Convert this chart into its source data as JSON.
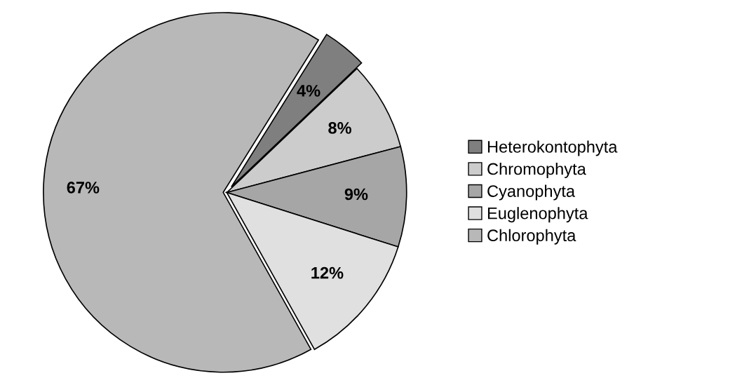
{
  "chart_data": {
    "type": "pie",
    "categories": [
      "Heterokontophyta",
      "Chromophyta",
      "Cyanophyta",
      "Euglenophyta",
      "Chlorophyta"
    ],
    "values": [
      4,
      8,
      9,
      12,
      67
    ],
    "value_labels": [
      "4%",
      "8%",
      "9%",
      "12%",
      "67%"
    ],
    "colors": [
      "#7f7f7f",
      "#cccccc",
      "#a6a6a6",
      "#e0e0e0",
      "#b8b8b8"
    ],
    "legend": "right"
  }
}
